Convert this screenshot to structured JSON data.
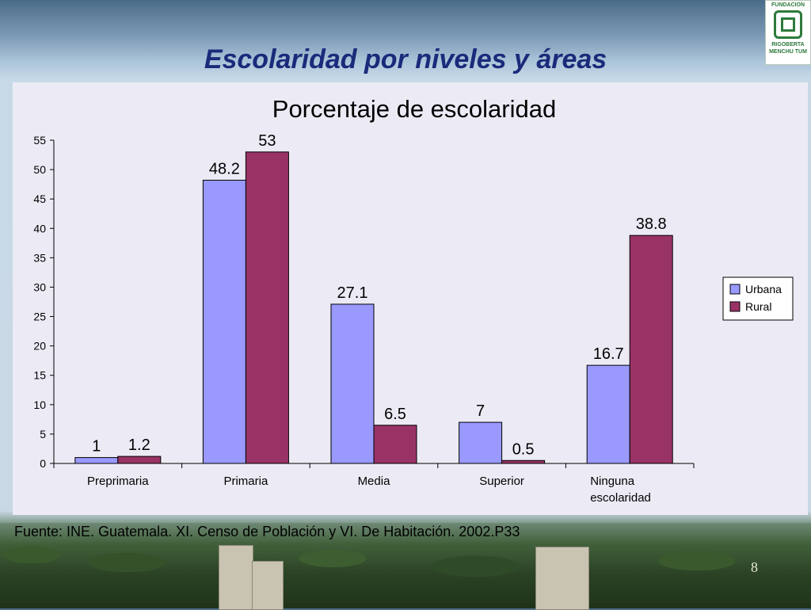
{
  "slide": {
    "title": "Escolaridad por niveles y áreas",
    "source": "Fuente: INE. Guatemala. XI. Censo de Población y VI. De Habitación. 2002.P33",
    "page_number": "8"
  },
  "logo": {
    "top_text": "FUNDACION",
    "bottom_line1": "RIGOBERTA",
    "bottom_line2": "MENCHU TUM"
  },
  "colors": {
    "urbana": "#9999ff",
    "rural": "#993366",
    "title": "#1b2a7a"
  },
  "chart_data": {
    "type": "bar",
    "title": "Porcentaje de escolaridad",
    "xlabel": "",
    "ylabel": "",
    "categories": [
      [
        "Preprimaria"
      ],
      [
        "Primaria"
      ],
      [
        "Media"
      ],
      [
        "Superior"
      ],
      [
        "Ninguna",
        "escolaridad"
      ]
    ],
    "series": [
      {
        "name": "Urbana",
        "values": [
          1,
          48.2,
          27.1,
          7,
          16.7
        ],
        "labels": [
          "1",
          "48.2",
          "27.1",
          "7",
          "16.7"
        ]
      },
      {
        "name": "Rural",
        "values": [
          1.2,
          53,
          6.5,
          0.5,
          38.8
        ],
        "labels": [
          "1.2",
          "53",
          "6.5",
          "0.5",
          "38.8"
        ]
      }
    ],
    "ylim": [
      0,
      55
    ],
    "yticks": [
      0,
      5,
      10,
      15,
      20,
      25,
      30,
      35,
      40,
      45,
      50,
      55
    ],
    "grid": false,
    "legend": "right"
  }
}
